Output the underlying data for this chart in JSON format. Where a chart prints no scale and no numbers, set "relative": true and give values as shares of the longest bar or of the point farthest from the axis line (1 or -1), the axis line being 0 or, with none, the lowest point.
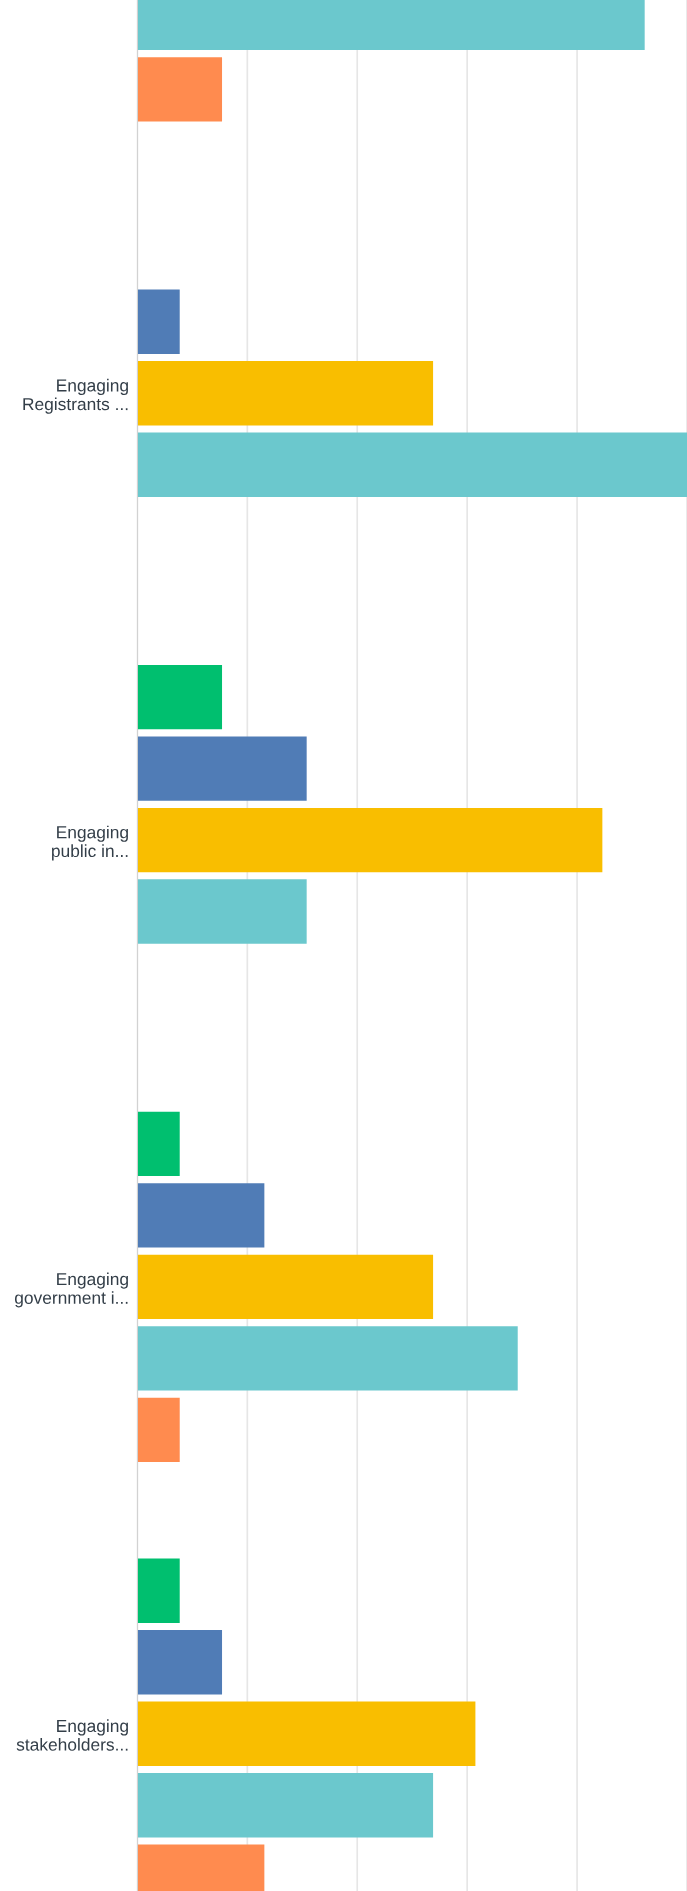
{
  "chart_data": {
    "type": "bar",
    "orientation": "horizontal",
    "relative": true,
    "grid": "x",
    "legend": false,
    "categories": [
      null,
      "Engaging\nRegistrants ...",
      "Engaging\npublic in...",
      "Engaging\ngovernment i...",
      "Engaging\nstakeholders..."
    ],
    "series": [
      {
        "color": "#00bf6f",
        "values": [
          null,
          0,
          0.154,
          0.077,
          0.077
        ]
      },
      {
        "color": "#507cb6",
        "values": [
          null,
          0.077,
          0.308,
          0.231,
          0.154
        ]
      },
      {
        "color": "#f9be00",
        "values": [
          null,
          0.538,
          0.846,
          0.538,
          0.615
        ]
      },
      {
        "color": "#6bc8cd",
        "values": [
          0.923,
          1,
          0.308,
          0.692,
          0.538
        ]
      },
      {
        "color": "#ff8b4f",
        "values": [
          0.154,
          0,
          0,
          0.077,
          0.231
        ]
      }
    ]
  }
}
